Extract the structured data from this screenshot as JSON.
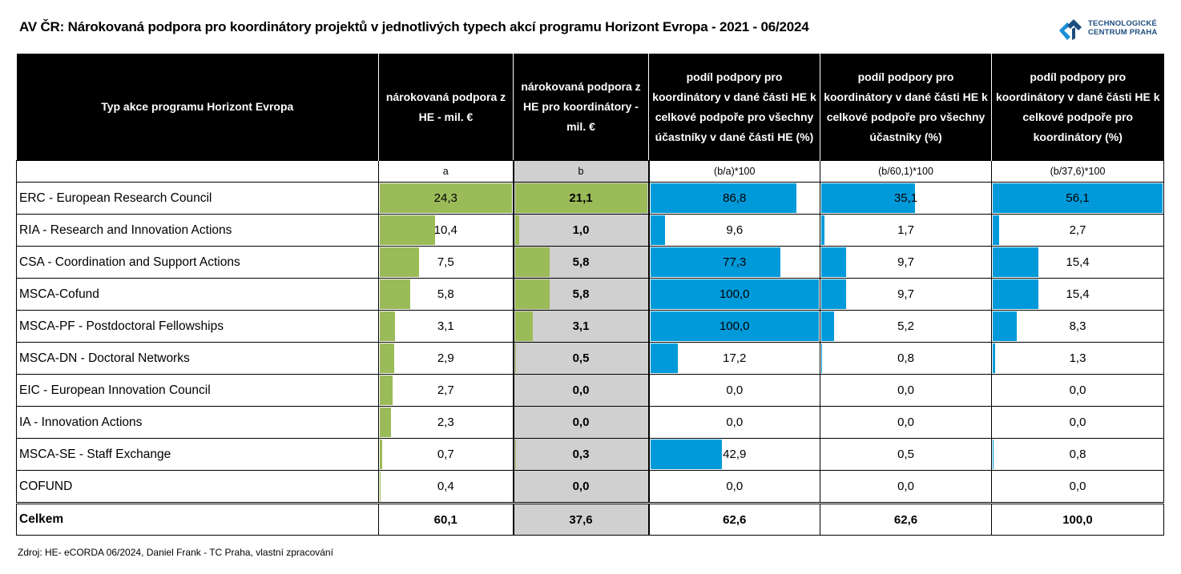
{
  "title": "AV ČR: Nárokovaná podpora pro koordinátory projektů v jednotlivých typech akcí programu Horizont Evropa - 2021 - 06/2024",
  "logo": {
    "icon": "tc-praha-logo-icon",
    "line1": "TECHNOLOGICKÉ",
    "line2": "CENTRUM PRAHA",
    "color_dark": "#1c4d7e",
    "color_light": "#1a8fd6"
  },
  "source": "Zdroj: HE- eCORDA 06/2024, Daniel Frank - TC Praha, vlastní zpracování",
  "colors": {
    "header_bg": "#000000",
    "green_bar": "#9bbb59",
    "blue_bar": "#009ada",
    "gray_col": "#d0d0d0"
  },
  "chart_data": {
    "type": "table",
    "title": "AV ČR: Nárokovaná podpora pro koordinátory projektů v jednotlivých typech akcí programu Horizont Evropa - 2021 - 06/2024",
    "columns": [
      "Typ akce programu Horizont Evropa",
      "nárokovaná podpora z HE - mil. €",
      "nárokovaná podpora z HE pro koordinátory - mil. €",
      "podíl podpory pro koordinátory  v dané části HE k celkové podpoře pro všechny účastníky v dané části HE (%)",
      "podíl podpory pro koordinátory v dané části HE k celkové podpoře pro všechny účastníky (%)",
      "podíl podpory pro koordinátory v dané části HE k celkové podpoře pro koordinátory (%)"
    ],
    "formulas": [
      "",
      "a",
      "b",
      "(b/a)*100",
      "(b/60,1)*100",
      "(b/37,6)*100"
    ],
    "bar_max": [
      null,
      24.3,
      21.1,
      100.0,
      62.6,
      56.1
    ],
    "rows": [
      {
        "label": "ERC  - European Research Council",
        "values": [
          24.3,
          21.1,
          86.8,
          35.1,
          56.1
        ],
        "display": [
          "24,3",
          "21,1",
          "86,8",
          "35,1",
          "56,1"
        ]
      },
      {
        "label": "RIA - Research and Innovation Actions",
        "values": [
          10.4,
          1.0,
          9.6,
          1.7,
          2.7
        ],
        "display": [
          "10,4",
          "1,0",
          "9,6",
          "1,7",
          "2,7"
        ]
      },
      {
        "label": "CSA - Coordination and Support Actions",
        "values": [
          7.5,
          5.8,
          77.3,
          9.7,
          15.4
        ],
        "display": [
          "7,5",
          "5,8",
          "77,3",
          "9,7",
          "15,4"
        ]
      },
      {
        "label": "MSCA-Cofund",
        "values": [
          5.8,
          5.8,
          100.0,
          9.7,
          15.4
        ],
        "display": [
          "5,8",
          "5,8",
          "100,0",
          "9,7",
          "15,4"
        ]
      },
      {
        "label": "MSCA-PF - Postdoctoral Fellowships",
        "values": [
          3.1,
          3.1,
          100.0,
          5.2,
          8.3
        ],
        "display": [
          "3,1",
          "3,1",
          "100,0",
          "5,2",
          "8,3"
        ]
      },
      {
        "label": "MSCA-DN - Doctoral Networks",
        "values": [
          2.9,
          0.5,
          17.2,
          0.8,
          1.3
        ],
        "display": [
          "2,9",
          "0,5",
          "17,2",
          "0,8",
          "1,3"
        ]
      },
      {
        "label": "EIC - European Innovation Council",
        "values": [
          2.7,
          0.0,
          0.0,
          0.0,
          0.0
        ],
        "display": [
          "2,7",
          "0,0",
          "0,0",
          "0,0",
          "0,0"
        ]
      },
      {
        "label": "IA - Innovation Actions",
        "values": [
          2.3,
          0.0,
          0.0,
          0.0,
          0.0
        ],
        "display": [
          "2,3",
          "0,0",
          "0,0",
          "0,0",
          "0,0"
        ]
      },
      {
        "label": "MSCA-SE - Staff Exchange",
        "values": [
          0.7,
          0.3,
          42.9,
          0.5,
          0.8
        ],
        "display": [
          "0,7",
          "0,3",
          "42,9",
          "0,5",
          "0,8"
        ]
      },
      {
        "label": "COFUND",
        "values": [
          0.4,
          0.0,
          0.0,
          0.0,
          0.0
        ],
        "display": [
          "0,4",
          "0,0",
          "0,0",
          "0,0",
          "0,0"
        ]
      }
    ],
    "total": {
      "label": "Celkem",
      "values": [
        60.1,
        37.6,
        62.6,
        62.6,
        100.0
      ],
      "display": [
        "60,1",
        "37,6",
        "62,6",
        "62,6",
        "100,0"
      ]
    }
  }
}
